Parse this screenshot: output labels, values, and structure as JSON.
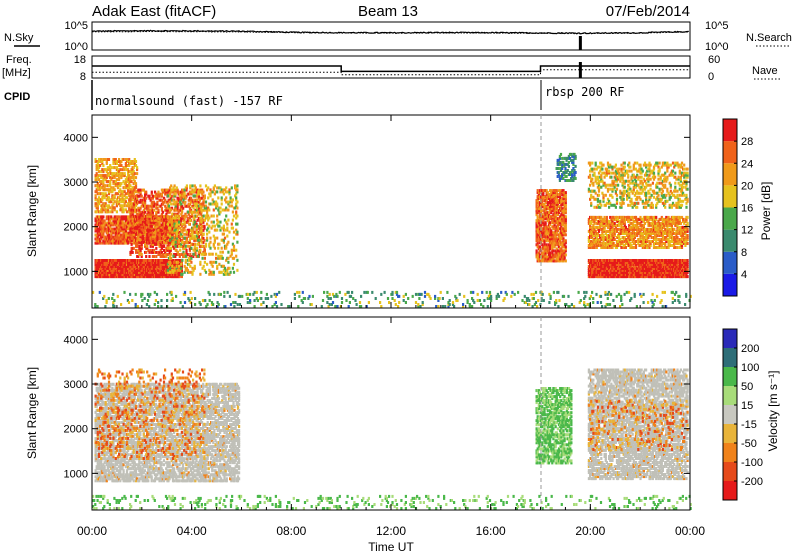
{
  "header": {
    "radar": "Adak East (fitACF)",
    "beam": "Beam 13",
    "date": "07/Feb/2014"
  },
  "noise_panel": {
    "left_label": "N.Sky",
    "right_label": "N.Search",
    "left_ticks": [
      "10^5",
      "10^0"
    ],
    "right_ticks": [
      "10^5",
      "10^0"
    ]
  },
  "freq_panel": {
    "left_label_line1": "Freq.",
    "left_label_line2": "[MHz]",
    "right_label": "Nave",
    "left_ticks": [
      "18",
      "8"
    ],
    "right_ticks": [
      "60",
      "0"
    ]
  },
  "cpid_panel": {
    "label": "CPID",
    "programs": [
      {
        "name": "normalsound (fast) -157 RF",
        "start_hour": 0
      },
      {
        "name": "rbsp 200 RF",
        "start_hour": 18
      }
    ]
  },
  "x_axis": {
    "label": "Time UT",
    "ticks": [
      "00:00",
      "04:00",
      "08:00",
      "12:00",
      "16:00",
      "20:00",
      "00:00"
    ]
  },
  "power_panel": {
    "ylabel": "Slant Range [km]",
    "y_ticks": [
      "1000",
      "2000",
      "3000",
      "4000"
    ],
    "cbar_label": "Power [dB]",
    "cbar_ticks": [
      "4",
      "8",
      "12",
      "16",
      "20",
      "24",
      "28"
    ]
  },
  "velocity_panel": {
    "ylabel": "Slant Range [km]",
    "y_ticks": [
      "1000",
      "2000",
      "3000",
      "4000"
    ],
    "cbar_label": "Velocity [m s⁻¹]",
    "cbar_ticks": [
      "200",
      "100",
      "50",
      "15",
      "-15",
      "-50",
      "-100",
      "-200"
    ]
  },
  "colors": {
    "power_scale": [
      "#1a1ae6",
      "#2a5cc8",
      "#3a8a6e",
      "#4aa84a",
      "#e6c21e",
      "#f09a1a",
      "#f0621a",
      "#e61a1a"
    ],
    "velocity_scale": [
      "#2a2ab8",
      "#2e6e78",
      "#4ab84a",
      "#a8dc7a",
      "#c8c8c0",
      "#e8b43a",
      "#f0821a",
      "#e64a1a",
      "#e61a1a"
    ],
    "ground_scatter": "#c0c0b8"
  },
  "chart_data": [
    {
      "type": "line",
      "name": "noise",
      "xlim_hours": [
        0,
        24
      ],
      "description_source": "log-scale noise level time series",
      "y_scale": "log",
      "ylim": [
        1,
        100000
      ],
      "x_hours": [
        0,
        2,
        4,
        6,
        8,
        10,
        12,
        14,
        16,
        18,
        19.6,
        20,
        22,
        24
      ],
      "sky_values": [
        3000,
        3800,
        3500,
        3000,
        1800,
        1500,
        1400,
        1600,
        1500,
        1300,
        1200,
        1200,
        1400,
        2500
      ],
      "search_values": [
        2200,
        2500,
        2400,
        2100,
        1500,
        1300,
        1200,
        1300,
        1250,
        1100,
        1000,
        1050,
        1200,
        2000
      ]
    },
    {
      "type": "line",
      "name": "frequency and nave",
      "xlim_hours": [
        0,
        24
      ],
      "freq_ylim": [
        8,
        18
      ],
      "nave_ylim": [
        0,
        60
      ],
      "freq_steps": [
        {
          "from": 0,
          "to": 10,
          "value": 13.5
        },
        {
          "from": 10,
          "to": 18,
          "value": 10.8
        },
        {
          "from": 18,
          "to": 24,
          "value": 13.5
        }
      ],
      "nave_steps": [
        {
          "from": 0,
          "to": 10,
          "value": 14
        },
        {
          "from": 10,
          "to": 18,
          "value": 7
        },
        {
          "from": 18,
          "to": 24,
          "value": 22
        }
      ]
    },
    {
      "type": "heatmap",
      "name": "power",
      "xlim_hours": [
        0,
        24
      ],
      "ylim_km": [
        180,
        4500
      ],
      "zlim": [
        0,
        30
      ],
      "regions": [
        {
          "t0": 0.1,
          "t1": 3.6,
          "r0": 850,
          "r1": 1250,
          "level": 0.92,
          "density": 0.95
        },
        {
          "t0": 0.1,
          "t1": 3.4,
          "r0": 1600,
          "r1": 2200,
          "level": 0.82,
          "density": 0.75
        },
        {
          "t0": 0.1,
          "t1": 1.8,
          "r0": 2300,
          "r1": 3500,
          "level": 0.68,
          "density": 0.45
        },
        {
          "t0": 1.5,
          "t1": 4.5,
          "r0": 1300,
          "r1": 2800,
          "level": 0.85,
          "density": 0.35
        },
        {
          "t0": 3.0,
          "t1": 5.8,
          "r0": 900,
          "r1": 2900,
          "level": 0.6,
          "density": 0.2
        },
        {
          "t0": 17.8,
          "t1": 19.0,
          "r0": 1200,
          "r1": 2800,
          "level": 0.8,
          "density": 0.7
        },
        {
          "t0": 18.6,
          "t1": 19.4,
          "r0": 3000,
          "r1": 3600,
          "level": 0.3,
          "density": 0.35
        },
        {
          "t0": 19.9,
          "t1": 23.9,
          "r0": 850,
          "r1": 1250,
          "level": 0.93,
          "density": 0.95
        },
        {
          "t0": 19.9,
          "t1": 23.9,
          "r0": 1500,
          "r1": 2200,
          "level": 0.72,
          "density": 0.6
        },
        {
          "t0": 19.9,
          "t1": 23.9,
          "r0": 2400,
          "r1": 3400,
          "level": 0.6,
          "density": 0.3
        },
        {
          "t0": 0.0,
          "t1": 24.0,
          "r0": 180,
          "r1": 500,
          "level": 0.4,
          "density": 0.1
        }
      ]
    },
    {
      "type": "heatmap",
      "name": "velocity",
      "xlim_hours": [
        0,
        24
      ],
      "ylim_km": [
        180,
        4500
      ],
      "zlim": [
        -200,
        200
      ],
      "regions": [
        {
          "t0": 0.1,
          "t1": 5.9,
          "r0": 800,
          "r1": 3000,
          "kind": "ground",
          "density": 0.55
        },
        {
          "t0": 0.1,
          "t1": 4.5,
          "r0": 1300,
          "r1": 3300,
          "kind": "negative",
          "density": 0.15
        },
        {
          "t0": 17.8,
          "t1": 19.2,
          "r0": 1200,
          "r1": 2900,
          "kind": "positive",
          "density": 0.55
        },
        {
          "t0": 19.9,
          "t1": 23.9,
          "r0": 850,
          "r1": 3300,
          "kind": "ground",
          "density": 0.55
        },
        {
          "t0": 19.9,
          "t1": 23.9,
          "r0": 1500,
          "r1": 2600,
          "kind": "negative",
          "density": 0.12
        },
        {
          "t0": 0.0,
          "t1": 24.0,
          "r0": 180,
          "r1": 450,
          "kind": "positive",
          "density": 0.1
        }
      ]
    }
  ]
}
